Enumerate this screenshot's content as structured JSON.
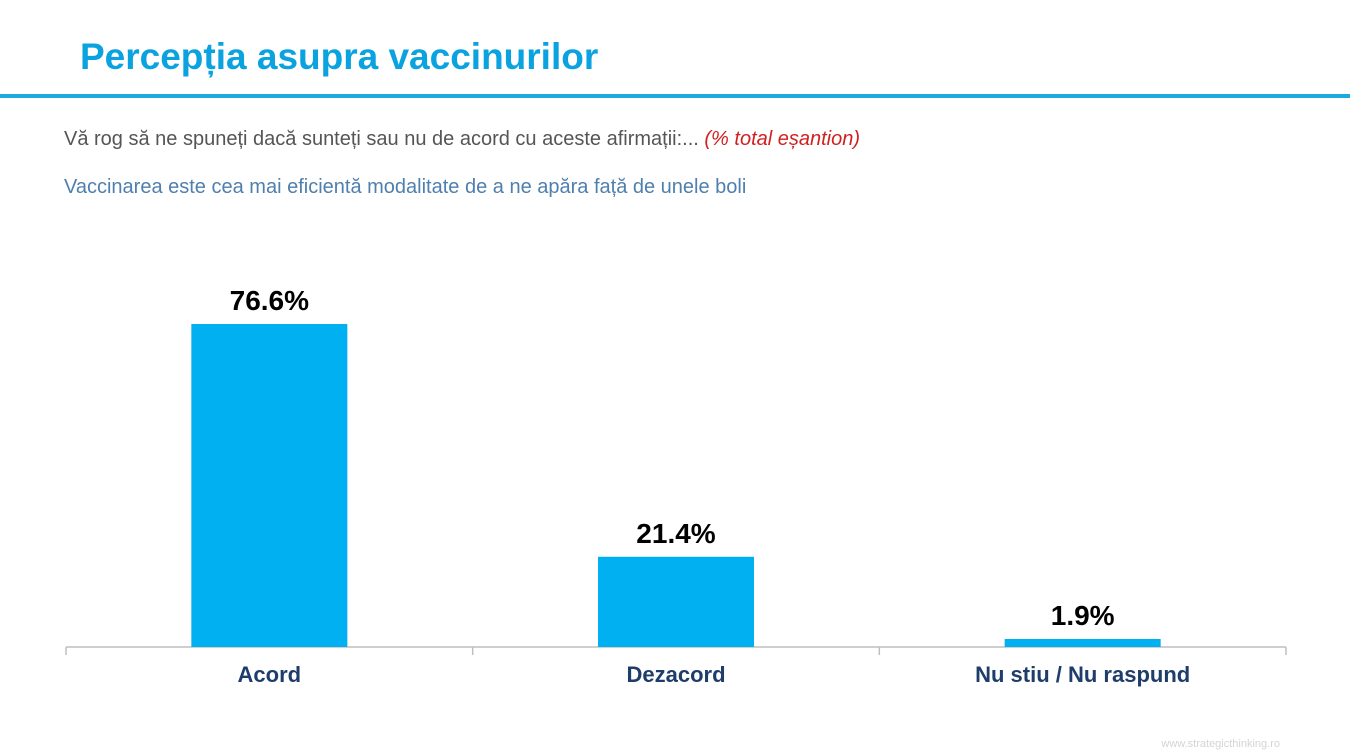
{
  "title": "Percepția asupra vaccinurilor",
  "question": {
    "text": "Vă rog să ne spuneți dacă sunteți sau nu de acord cu aceste afirmații:...",
    "note": "(% total eșantion)"
  },
  "statement": "Vaccinarea este cea mai eficientă modalitate de a ne apăra față de unele boli",
  "watermark": "www.strategicthinking.ro",
  "colors": {
    "title": "#0aa3e0",
    "bar": "#00b0f0",
    "note": "#d21f1f",
    "statement": "#4f7fad",
    "category_label": "#1f3d6b"
  },
  "chart_data": {
    "type": "bar",
    "categories": [
      "Acord",
      "Dezacord",
      "Nu stiu / Nu raspund"
    ],
    "values": [
      76.6,
      21.4,
      1.9
    ],
    "value_labels": [
      "76.6%",
      "21.4%",
      "1.9%"
    ],
    "title": "",
    "xlabel": "",
    "ylabel": "",
    "ylim": [
      0,
      80
    ],
    "grid": false,
    "legend": "none"
  }
}
